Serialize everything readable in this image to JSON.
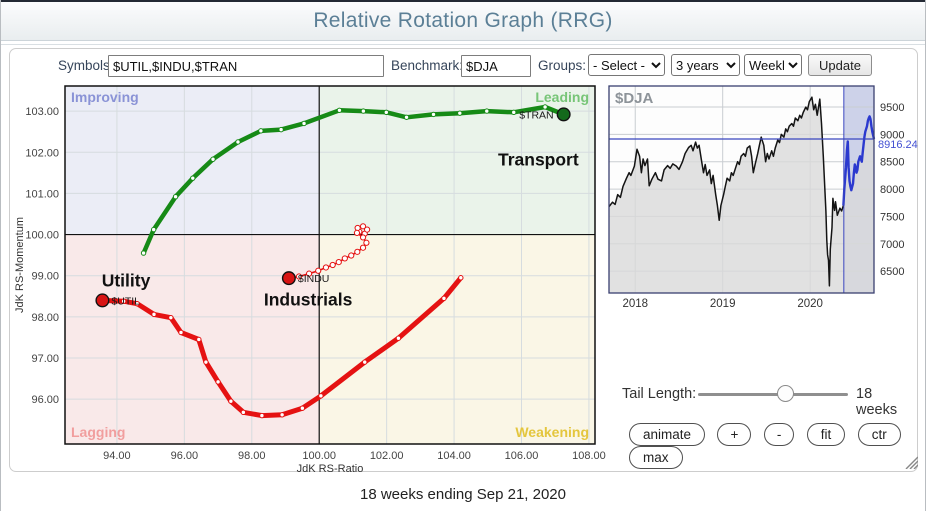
{
  "header": {
    "title": "Relative Rotation Graph (RRG)"
  },
  "toolbar": {
    "symbols_label": "Symbols:",
    "symbols_value": "$UTIL,$INDU,$TRAN",
    "benchmark_label": "Benchmark:",
    "benchmark_value": "$DJA",
    "groups_label": "Groups:",
    "groups_value": "- Select -",
    "period_value": "3 years",
    "frequency_value": "Weekly",
    "update_label": "Update"
  },
  "controls": {
    "tail_length_label": "Tail Length:",
    "tail_length_value": "18 weeks",
    "tail_slider_percent": 58,
    "buttons": [
      "animate",
      "+",
      "-",
      "fit",
      "ctr",
      "max"
    ]
  },
  "footer": {
    "caption": "18 weeks ending Sep 21, 2020"
  },
  "chart_data": [
    {
      "type": "line",
      "title": "Relative Rotation Graph",
      "xlabel": "JdK RS-Ratio",
      "ylabel": "JdK RS-Momentum",
      "xlim": [
        92.46,
        108.18
      ],
      "ylim": [
        94.91,
        103.61
      ],
      "center": [
        100,
        100
      ],
      "xticks": [
        94,
        96,
        98,
        100,
        102,
        104,
        106,
        108
      ],
      "yticks": [
        96,
        97,
        98,
        99,
        100,
        101,
        102,
        103
      ],
      "grid": true,
      "quadrants": {
        "improving": {
          "label": "Improving",
          "color": "#8a93d6",
          "bg": "#ebedf6"
        },
        "leading": {
          "label": "Leading",
          "color": "#77c577",
          "bg": "#eaf3ea"
        },
        "lagging": {
          "label": "Lagging",
          "color": "#f19e9e",
          "bg": "#f9e9e9"
        },
        "weakening": {
          "label": "Weakening",
          "color": "#e4c63e",
          "bg": "#faf6e6"
        }
      },
      "series": [
        {
          "symbol": "$TRAN",
          "sector": "Transport",
          "color": "#168a16",
          "head_color": "#14691c",
          "width": 4.5,
          "marker_r": 2.2,
          "head_label_side": "left",
          "label_pos": [
            106.5,
            101.82
          ],
          "points": [
            [
              94.79,
              99.55
            ],
            [
              95.09,
              100.12
            ],
            [
              95.74,
              100.92
            ],
            [
              96.25,
              101.37
            ],
            [
              96.85,
              101.83
            ],
            [
              97.59,
              102.25
            ],
            [
              98.27,
              102.52
            ],
            [
              98.87,
              102.55
            ],
            [
              99.55,
              102.7
            ],
            [
              100.6,
              103.02
            ],
            [
              101.31,
              103.0
            ],
            [
              101.99,
              102.97
            ],
            [
              102.59,
              102.85
            ],
            [
              103.39,
              102.92
            ],
            [
              104.17,
              102.95
            ],
            [
              104.97,
              103.0
            ],
            [
              105.77,
              102.97
            ],
            [
              106.7,
              103.1
            ],
            [
              107.25,
              102.92
            ]
          ]
        },
        {
          "symbol": "$UTIL",
          "sector": "Utility",
          "color": "#e51212",
          "head_color": "#d81414",
          "width": 5,
          "marker_r": 2.2,
          "head_label_side": "right",
          "label_pos": [
            94.27,
            98.88
          ],
          "points": [
            [
              104.2,
              98.95
            ],
            [
              103.7,
              98.45
            ],
            [
              102.35,
              97.48
            ],
            [
              101.35,
              96.9
            ],
            [
              100.05,
              96.08
            ],
            [
              99.5,
              95.78
            ],
            [
              98.9,
              95.62
            ],
            [
              98.3,
              95.6
            ],
            [
              97.75,
              95.68
            ],
            [
              97.38,
              95.95
            ],
            [
              97.0,
              96.42
            ],
            [
              96.64,
              96.9
            ],
            [
              96.43,
              97.45
            ],
            [
              95.9,
              97.62
            ],
            [
              95.6,
              97.98
            ],
            [
              95.1,
              98.06
            ],
            [
              94.6,
              98.32
            ],
            [
              94.2,
              98.38
            ],
            [
              93.57,
              98.4
            ]
          ]
        },
        {
          "symbol": "$INDU",
          "sector": "Industrials",
          "color": "#e51212",
          "head_color": "#d81414",
          "width": 1.6,
          "marker_r": 2.6,
          "head_label_side": "right",
          "label_pos": [
            99.67,
            98.42
          ],
          "points": [
            [
              101.19,
              100.07
            ],
            [
              101.35,
              100.02
            ],
            [
              101.42,
              100.12
            ],
            [
              101.3,
              100.2
            ],
            [
              101.14,
              100.16
            ],
            [
              101.12,
              100.04
            ],
            [
              101.3,
              99.93
            ],
            [
              101.4,
              99.8
            ],
            [
              101.3,
              99.68
            ],
            [
              101.13,
              99.58
            ],
            [
              100.95,
              99.49
            ],
            [
              100.76,
              99.42
            ],
            [
              100.58,
              99.33
            ],
            [
              100.4,
              99.26
            ],
            [
              100.2,
              99.2
            ],
            [
              99.97,
              99.12
            ],
            [
              99.7,
              99.05
            ],
            [
              99.4,
              98.98
            ],
            [
              99.1,
              98.94
            ]
          ]
        }
      ]
    },
    {
      "type": "area",
      "symbol": "$DJA",
      "last_price": 8916.24,
      "last_price_label": "8916.24",
      "x_range": [
        2017.7,
        2020.73
      ],
      "ylim": [
        6100,
        9885
      ],
      "yticks": [
        6500,
        7000,
        7500,
        8000,
        8500,
        9000,
        9500
      ],
      "xticks": [
        2018,
        2019,
        2020
      ],
      "xtick_labels": [
        "2018",
        "2019",
        "2020"
      ],
      "highlight_start": 2020.385,
      "colors": {
        "line": "#141414",
        "highlight_line": "#2b39cf",
        "zone": "#cdd2e9",
        "area": "#d9d9d9",
        "marker_line": "#3a46c0",
        "label": "#4350d2"
      },
      "points": [
        [
          2017.7,
          7680
        ],
        [
          2017.74,
          7760
        ],
        [
          2017.77,
          7720
        ],
        [
          2017.8,
          7900
        ],
        [
          2017.83,
          7850
        ],
        [
          2017.86,
          8050
        ],
        [
          2017.9,
          8200
        ],
        [
          2017.93,
          8300
        ],
        [
          2017.95,
          8250
        ],
        [
          2017.99,
          8420
        ],
        [
          2018.02,
          8730
        ],
        [
          2018.05,
          8600
        ],
        [
          2018.07,
          8300
        ],
        [
          2018.09,
          8550
        ],
        [
          2018.11,
          8430
        ],
        [
          2018.14,
          8550
        ],
        [
          2018.16,
          8060
        ],
        [
          2018.19,
          8180
        ],
        [
          2018.23,
          8300
        ],
        [
          2018.26,
          8180
        ],
        [
          2018.3,
          8150
        ],
        [
          2018.33,
          8350
        ],
        [
          2018.37,
          8430
        ],
        [
          2018.4,
          8380
        ],
        [
          2018.43,
          8460
        ],
        [
          2018.47,
          8420
        ],
        [
          2018.5,
          8360
        ],
        [
          2018.54,
          8500
        ],
        [
          2018.57,
          8650
        ],
        [
          2018.61,
          8760
        ],
        [
          2018.64,
          8800
        ],
        [
          2018.66,
          8700
        ],
        [
          2018.69,
          8860
        ],
        [
          2018.71,
          8750
        ],
        [
          2018.73,
          8800
        ],
        [
          2018.76,
          8500
        ],
        [
          2018.78,
          8300
        ],
        [
          2018.8,
          8450
        ],
        [
          2018.82,
          8250
        ],
        [
          2018.85,
          8350
        ],
        [
          2018.87,
          8100
        ],
        [
          2018.89,
          8250
        ],
        [
          2018.92,
          7900
        ],
        [
          2018.94,
          7700
        ],
        [
          2018.96,
          7430
        ],
        [
          2018.98,
          7700
        ],
        [
          2019.01,
          7900
        ],
        [
          2019.03,
          8050
        ],
        [
          2019.05,
          8200
        ],
        [
          2019.08,
          8150
        ],
        [
          2019.1,
          8300
        ],
        [
          2019.12,
          8250
        ],
        [
          2019.15,
          8400
        ],
        [
          2019.17,
          8500
        ],
        [
          2019.19,
          8450
        ],
        [
          2019.21,
          8600
        ],
        [
          2019.24,
          8650
        ],
        [
          2019.26,
          8600
        ],
        [
          2019.28,
          8750
        ],
        [
          2019.31,
          8790
        ],
        [
          2019.33,
          8600
        ],
        [
          2019.35,
          8300
        ],
        [
          2019.37,
          8450
        ],
        [
          2019.4,
          8650
        ],
        [
          2019.42,
          8800
        ],
        [
          2019.44,
          8950
        ],
        [
          2019.47,
          8800
        ],
        [
          2019.49,
          8500
        ],
        [
          2019.51,
          8650
        ],
        [
          2019.53,
          8550
        ],
        [
          2019.56,
          8700
        ],
        [
          2019.58,
          8600
        ],
        [
          2019.6,
          8750
        ],
        [
          2019.63,
          8900
        ],
        [
          2019.65,
          8850
        ],
        [
          2019.67,
          9000
        ],
        [
          2019.7,
          8950
        ],
        [
          2019.72,
          9100
        ],
        [
          2019.74,
          9050
        ],
        [
          2019.76,
          9150
        ],
        [
          2019.79,
          9200
        ],
        [
          2019.81,
          9150
        ],
        [
          2019.83,
          9300
        ],
        [
          2019.86,
          9250
        ],
        [
          2019.88,
          9350
        ],
        [
          2019.9,
          9300
        ],
        [
          2019.92,
          9400
        ],
        [
          2019.95,
          9500
        ],
        [
          2019.97,
          9450
        ],
        [
          2019.99,
          9600
        ],
        [
          2020.02,
          9680
        ],
        [
          2020.04,
          9450
        ],
        [
          2020.06,
          9550
        ],
        [
          2020.08,
          9350
        ],
        [
          2020.11,
          9645
        ],
        [
          2020.13,
          9200
        ],
        [
          2020.15,
          8600
        ],
        [
          2020.18,
          7600
        ],
        [
          2020.19,
          7064
        ],
        [
          2020.2,
          6800
        ],
        [
          2020.21,
          6700
        ],
        [
          2020.22,
          6230
        ],
        [
          2020.23,
          6900
        ],
        [
          2020.25,
          7300
        ],
        [
          2020.26,
          7830
        ],
        [
          2020.27,
          7700
        ],
        [
          2020.28,
          7610
        ],
        [
          2020.29,
          7770
        ],
        [
          2020.3,
          7650
        ],
        [
          2020.31,
          7520
        ],
        [
          2020.34,
          7650
        ],
        [
          2020.36,
          7600
        ],
        [
          2020.38,
          7700
        ],
        [
          2020.39,
          8000
        ],
        [
          2020.41,
          8400
        ],
        [
          2020.42,
          8700
        ],
        [
          2020.43,
          8870
        ],
        [
          2020.44,
          8400
        ],
        [
          2020.45,
          8150
        ],
        [
          2020.46,
          8050
        ],
        [
          2020.47,
          7980
        ],
        [
          2020.49,
          8100
        ],
        [
          2020.5,
          8300
        ],
        [
          2020.51,
          8450
        ],
        [
          2020.52,
          8400
        ],
        [
          2020.53,
          8300
        ],
        [
          2020.54,
          8350
        ],
        [
          2020.55,
          8500
        ],
        [
          2020.57,
          8600
        ],
        [
          2020.58,
          8550
        ],
        [
          2020.59,
          8500
        ],
        [
          2020.6,
          8650
        ],
        [
          2020.61,
          8800
        ],
        [
          2020.62,
          8950
        ],
        [
          2020.63,
          9050
        ],
        [
          2020.65,
          9150
        ],
        [
          2020.66,
          9250
        ],
        [
          2020.67,
          9300
        ],
        [
          2020.68,
          9330
        ],
        [
          2020.69,
          9280
        ],
        [
          2020.7,
          9150
        ],
        [
          2020.71,
          9050
        ],
        [
          2020.73,
          8916
        ]
      ]
    }
  ]
}
